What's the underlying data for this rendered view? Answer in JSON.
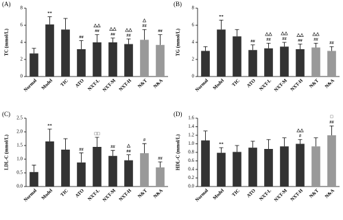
{
  "chart_data": [
    {
      "type": "bar",
      "panel_label": "(A)",
      "y_label": "TC (mmol/L)",
      "categories": [
        "Normal",
        "Model",
        "TIC",
        "ATO",
        "NXT-L",
        "NXT-M",
        "NXT-H",
        "N&T",
        "N&A"
      ],
      "values": [
        2.7,
        6.1,
        5.5,
        3.2,
        4.0,
        4.0,
        3.8,
        4.3,
        3.7
      ],
      "errors": [
        0.6,
        0.9,
        1.3,
        1.0,
        0.9,
        0.5,
        0.6,
        1.2,
        1.2
      ],
      "colors": [
        "#333333",
        "#333333",
        "#333333",
        "#333333",
        "#333333",
        "#333333",
        "#333333",
        "#999999",
        "#999999"
      ],
      "annotations": [
        null,
        [
          "**"
        ],
        null,
        [
          "##"
        ],
        [
          "△△",
          "##"
        ],
        [
          "△△",
          "##"
        ],
        [
          "△△",
          "##"
        ],
        [
          "△",
          "##"
        ],
        [
          "##"
        ]
      ],
      "ylim": [
        0,
        8
      ],
      "yticks": [
        0,
        2,
        4,
        6,
        8
      ]
    },
    {
      "type": "bar",
      "panel_label": "(B)",
      "y_label": "TG (mmol/L)",
      "categories": [
        "Normal",
        "Model",
        "TIC",
        "ATO",
        "NXT-L",
        "NXT-M",
        "NXT-H",
        "N&T",
        "N&A"
      ],
      "values": [
        3.0,
        5.5,
        4.7,
        3.1,
        3.3,
        3.5,
        3.2,
        3.4,
        3.0
      ],
      "errors": [
        0.5,
        1.1,
        0.8,
        0.6,
        0.6,
        0.5,
        0.6,
        0.5,
        0.5
      ],
      "colors": [
        "#333333",
        "#333333",
        "#333333",
        "#333333",
        "#333333",
        "#333333",
        "#333333",
        "#999999",
        "#999999"
      ],
      "annotations": [
        null,
        [
          "**"
        ],
        null,
        [
          "##"
        ],
        [
          "△△",
          "##"
        ],
        [
          "△△",
          "##"
        ],
        [
          "△△",
          "##"
        ],
        [
          "△△",
          "##"
        ],
        [
          "##"
        ]
      ],
      "ylim": [
        0,
        8
      ],
      "yticks": [
        0,
        2,
        4,
        6,
        8
      ]
    },
    {
      "type": "bar",
      "panel_label": "(C)",
      "y_label": "LDL-C (mmol/L)",
      "categories": [
        "Normal",
        "Model",
        "TIC",
        "ATO",
        "NXT-L",
        "NXT-M",
        "NXT-H",
        "N&T",
        "N&A"
      ],
      "values": [
        0.53,
        1.65,
        1.35,
        0.88,
        1.45,
        1.12,
        0.96,
        1.22,
        0.7
      ],
      "errors": [
        0.25,
        0.45,
        0.4,
        0.35,
        0.35,
        0.2,
        0.2,
        0.35,
        0.2
      ],
      "colors": [
        "#333333",
        "#333333",
        "#333333",
        "#333333",
        "#333333",
        "#333333",
        "#333333",
        "#999999",
        "#999999"
      ],
      "annotations": [
        null,
        [
          "**"
        ],
        null,
        [
          "##"
        ],
        [
          "□□"
        ],
        [
          "##"
        ],
        [
          "△",
          "##"
        ],
        [
          "#"
        ],
        [
          "##"
        ]
      ],
      "ylim": [
        0,
        2.5
      ],
      "yticks": [
        {
          "value": 0,
          "label": "0.0"
        },
        0.5,
        {
          "value": 1,
          "label": "1.0"
        },
        1.5,
        {
          "value": 2,
          "label": "2.0"
        },
        2.5
      ]
    },
    {
      "type": "bar",
      "panel_label": "(D)",
      "y_label": "HDL-C (mmol/L)",
      "categories": [
        "Normal",
        "Model",
        "TIC",
        "ATO",
        "NXT-L",
        "NXT-M",
        "NXT-H",
        "N&T",
        "N&A"
      ],
      "values": [
        1.08,
        0.79,
        0.81,
        0.91,
        0.88,
        0.94,
        1.0,
        0.94,
        1.2
      ],
      "errors": [
        0.22,
        0.12,
        0.15,
        0.15,
        0.22,
        0.2,
        0.1,
        0.2,
        0.22
      ],
      "colors": [
        "#333333",
        "#333333",
        "#333333",
        "#333333",
        "#333333",
        "#333333",
        "#333333",
        "#999999",
        "#999999"
      ],
      "annotations": [
        null,
        [
          "**"
        ],
        null,
        null,
        null,
        null,
        [
          "△△",
          "#"
        ],
        null,
        [
          "□",
          "##"
        ]
      ],
      "ylim": [
        0,
        1.6
      ],
      "yticks": [
        {
          "value": 0,
          "label": "0.0"
        },
        0.2,
        0.4,
        0.6,
        0.8,
        {
          "value": 1,
          "label": "1.0"
        },
        1.2,
        1.4,
        1.6
      ]
    }
  ]
}
